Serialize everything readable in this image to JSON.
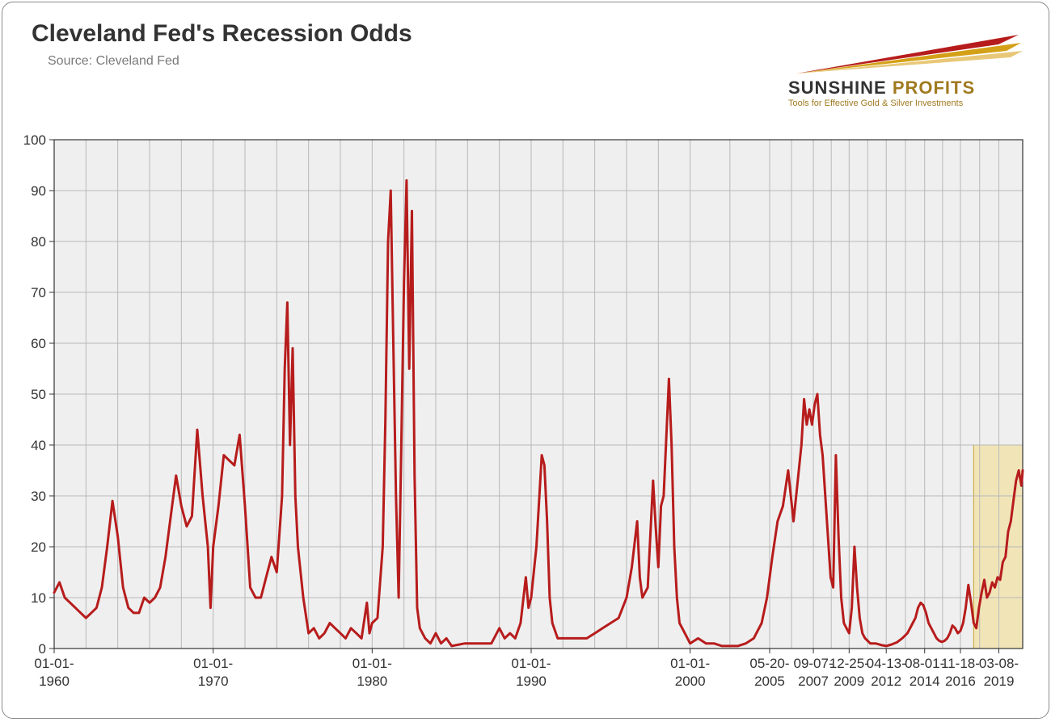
{
  "title": "Cleveland Fed's Recession Odds",
  "source": "Source: Cleveland Fed",
  "logo": {
    "line1_a": "SUNSHINE",
    "line1_b": "PROFITS",
    "tagline": "Tools for Effective Gold & Silver Investments",
    "ray_colors": [
      "#b71c1c",
      "#d4a017",
      "#e8c878"
    ]
  },
  "chart": {
    "type": "line",
    "plot_background": "#efefef",
    "grid_color": "#b8b8b8",
    "axis_color": "#333333",
    "tick_label_color": "#333333",
    "tick_fontsize": 17,
    "line_color": "#b71c1c",
    "line_width": 3,
    "highlight_fill": "#f2dd8a",
    "highlight_opacity": 0.55,
    "highlight_border": "#c9a62a",
    "ylim": [
      0,
      100
    ],
    "ytick_step": 10,
    "y_ticks": [
      0,
      10,
      20,
      30,
      40,
      50,
      60,
      70,
      80,
      90,
      100
    ],
    "x_min": 0,
    "x_max": 731,
    "highlight_x": [
      694,
      731
    ],
    "highlight_y": [
      0,
      40
    ],
    "x_tick_positions": [
      0,
      120,
      240,
      360,
      480,
      540,
      573,
      600,
      628,
      657,
      684,
      713
    ],
    "x_tick_labels": [
      "01-01-\n1960",
      "01-01-\n1970",
      "01-01-\n1980",
      "01-01-\n1990",
      "01-01-\n2000",
      "05-20-\n2005",
      "09-07-\n2007",
      "12-25-\n2009",
      "04-13-\n2012",
      "08-01-\n2014",
      "11-18-\n2016",
      "03-08-\n2019"
    ],
    "series": [
      [
        0,
        11
      ],
      [
        4,
        13
      ],
      [
        8,
        10
      ],
      [
        12,
        9
      ],
      [
        16,
        8
      ],
      [
        20,
        7
      ],
      [
        24,
        6
      ],
      [
        28,
        7
      ],
      [
        32,
        8
      ],
      [
        36,
        12
      ],
      [
        40,
        20
      ],
      [
        44,
        29
      ],
      [
        48,
        22
      ],
      [
        52,
        12
      ],
      [
        56,
        8
      ],
      [
        60,
        7
      ],
      [
        64,
        7
      ],
      [
        68,
        10
      ],
      [
        72,
        9
      ],
      [
        76,
        10
      ],
      [
        80,
        12
      ],
      [
        84,
        18
      ],
      [
        88,
        26
      ],
      [
        92,
        34
      ],
      [
        96,
        28
      ],
      [
        100,
        24
      ],
      [
        104,
        26
      ],
      [
        108,
        43
      ],
      [
        112,
        30
      ],
      [
        116,
        20
      ],
      [
        118,
        8
      ],
      [
        120,
        20
      ],
      [
        124,
        28
      ],
      [
        128,
        38
      ],
      [
        132,
        37
      ],
      [
        136,
        36
      ],
      [
        140,
        42
      ],
      [
        144,
        28
      ],
      [
        148,
        12
      ],
      [
        152,
        10
      ],
      [
        156,
        10
      ],
      [
        160,
        14
      ],
      [
        164,
        18
      ],
      [
        168,
        15
      ],
      [
        172,
        30
      ],
      [
        174,
        55
      ],
      [
        176,
        68
      ],
      [
        178,
        40
      ],
      [
        180,
        59
      ],
      [
        182,
        30
      ],
      [
        184,
        20
      ],
      [
        188,
        10
      ],
      [
        192,
        3
      ],
      [
        196,
        4
      ],
      [
        200,
        2
      ],
      [
        204,
        3
      ],
      [
        208,
        5
      ],
      [
        212,
        4
      ],
      [
        216,
        3
      ],
      [
        220,
        2
      ],
      [
        224,
        4
      ],
      [
        228,
        3
      ],
      [
        232,
        2
      ],
      [
        236,
        9
      ],
      [
        238,
        3
      ],
      [
        240,
        5
      ],
      [
        244,
        6
      ],
      [
        248,
        20
      ],
      [
        250,
        45
      ],
      [
        252,
        80
      ],
      [
        254,
        90
      ],
      [
        256,
        60
      ],
      [
        258,
        30
      ],
      [
        260,
        10
      ],
      [
        262,
        40
      ],
      [
        264,
        72
      ],
      [
        266,
        92
      ],
      [
        268,
        55
      ],
      [
        270,
        86
      ],
      [
        272,
        34
      ],
      [
        274,
        8
      ],
      [
        276,
        4
      ],
      [
        280,
        2
      ],
      [
        284,
        1
      ],
      [
        288,
        3
      ],
      [
        292,
        1
      ],
      [
        296,
        2
      ],
      [
        300,
        0.5
      ],
      [
        310,
        1
      ],
      [
        320,
        1
      ],
      [
        330,
        1
      ],
      [
        336,
        4
      ],
      [
        340,
        2
      ],
      [
        344,
        3
      ],
      [
        348,
        2
      ],
      [
        352,
        5
      ],
      [
        356,
        14
      ],
      [
        358,
        8
      ],
      [
        360,
        10
      ],
      [
        364,
        20
      ],
      [
        368,
        38
      ],
      [
        370,
        36
      ],
      [
        372,
        25
      ],
      [
        374,
        10
      ],
      [
        376,
        5
      ],
      [
        380,
        2
      ],
      [
        384,
        2
      ],
      [
        390,
        2
      ],
      [
        396,
        2
      ],
      [
        402,
        2
      ],
      [
        408,
        3
      ],
      [
        414,
        4
      ],
      [
        420,
        5
      ],
      [
        426,
        6
      ],
      [
        432,
        10
      ],
      [
        436,
        16
      ],
      [
        440,
        25
      ],
      [
        442,
        14
      ],
      [
        444,
        10
      ],
      [
        448,
        12
      ],
      [
        452,
        33
      ],
      [
        454,
        24
      ],
      [
        456,
        16
      ],
      [
        458,
        28
      ],
      [
        460,
        30
      ],
      [
        464,
        53
      ],
      [
        466,
        40
      ],
      [
        468,
        20
      ],
      [
        470,
        10
      ],
      [
        472,
        5
      ],
      [
        476,
        3
      ],
      [
        480,
        1
      ],
      [
        486,
        2
      ],
      [
        492,
        1
      ],
      [
        498,
        1
      ],
      [
        504,
        0.5
      ],
      [
        510,
        0.5
      ],
      [
        516,
        0.5
      ],
      [
        522,
        1
      ],
      [
        528,
        2
      ],
      [
        534,
        5
      ],
      [
        538,
        10
      ],
      [
        542,
        18
      ],
      [
        546,
        25
      ],
      [
        550,
        28
      ],
      [
        554,
        35
      ],
      [
        556,
        30
      ],
      [
        558,
        25
      ],
      [
        560,
        30
      ],
      [
        564,
        40
      ],
      [
        566,
        49
      ],
      [
        568,
        44
      ],
      [
        570,
        47
      ],
      [
        572,
        44
      ],
      [
        574,
        48
      ],
      [
        576,
        50
      ],
      [
        578,
        42
      ],
      [
        580,
        38
      ],
      [
        582,
        30
      ],
      [
        584,
        22
      ],
      [
        586,
        14
      ],
      [
        588,
        12
      ],
      [
        590,
        38
      ],
      [
        592,
        22
      ],
      [
        594,
        10
      ],
      [
        596,
        5
      ],
      [
        598,
        4
      ],
      [
        600,
        3
      ],
      [
        602,
        8
      ],
      [
        604,
        20
      ],
      [
        606,
        12
      ],
      [
        608,
        6
      ],
      [
        610,
        3
      ],
      [
        612,
        2
      ],
      [
        614,
        1.5
      ],
      [
        616,
        1
      ],
      [
        618,
        1
      ],
      [
        620,
        1
      ],
      [
        624,
        0.7
      ],
      [
        628,
        0.5
      ],
      [
        632,
        0.8
      ],
      [
        636,
        1.2
      ],
      [
        640,
        2
      ],
      [
        644,
        3
      ],
      [
        648,
        5
      ],
      [
        650,
        6
      ],
      [
        652,
        8
      ],
      [
        654,
        9
      ],
      [
        656,
        8.5
      ],
      [
        658,
        7
      ],
      [
        660,
        5
      ],
      [
        662,
        4
      ],
      [
        664,
        3
      ],
      [
        666,
        2
      ],
      [
        668,
        1.5
      ],
      [
        670,
        1.3
      ],
      [
        672,
        1.5
      ],
      [
        674,
        2
      ],
      [
        676,
        3
      ],
      [
        678,
        4.5
      ],
      [
        680,
        4
      ],
      [
        682,
        3
      ],
      [
        684,
        3.5
      ],
      [
        686,
        5
      ],
      [
        688,
        8
      ],
      [
        690,
        12.5
      ],
      [
        692,
        9
      ],
      [
        694,
        5
      ],
      [
        696,
        4
      ],
      [
        698,
        8
      ],
      [
        700,
        11
      ],
      [
        702,
        13.5
      ],
      [
        704,
        10
      ],
      [
        706,
        11
      ],
      [
        708,
        13
      ],
      [
        710,
        12
      ],
      [
        712,
        14
      ],
      [
        714,
        13.5
      ],
      [
        716,
        17
      ],
      [
        718,
        18
      ],
      [
        720,
        23
      ],
      [
        722,
        25
      ],
      [
        724,
        29
      ],
      [
        726,
        33
      ],
      [
        728,
        35
      ],
      [
        730,
        32
      ],
      [
        731,
        35
      ]
    ]
  }
}
